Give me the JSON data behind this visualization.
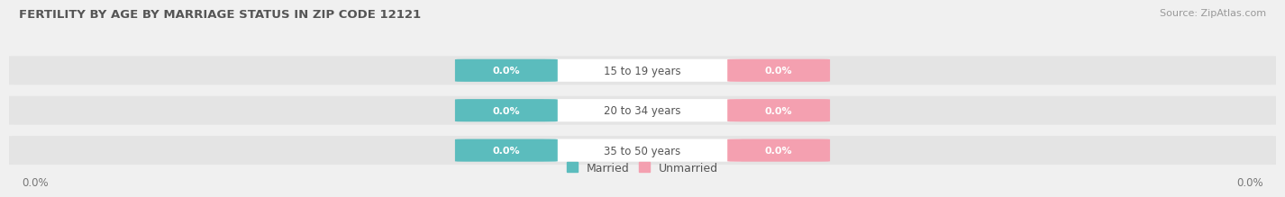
{
  "title": "FERTILITY BY AGE BY MARRIAGE STATUS IN ZIP CODE 12121",
  "source_text": "Source: ZipAtlas.com",
  "age_groups": [
    "15 to 19 years",
    "20 to 34 years",
    "35 to 50 years"
  ],
  "married_values": [
    0.0,
    0.0,
    0.0
  ],
  "unmarried_values": [
    0.0,
    0.0,
    0.0
  ],
  "married_color": "#5bbcbd",
  "unmarried_color": "#f4a0b0",
  "bar_bg_color": "#e4e4e4",
  "label_bg_color": "#ffffff",
  "title_fontsize": 9.5,
  "source_fontsize": 8.0,
  "label_fontsize": 8.5,
  "value_fontsize": 8.0,
  "legend_fontsize": 9,
  "tick_fontsize": 8.5,
  "axis_label_left": "0.0%",
  "axis_label_right": "0.0%",
  "background_color": "#f0f0f0",
  "title_color": "#555555",
  "source_color": "#999999",
  "label_color": "#555555",
  "value_color": "#ffffff",
  "tick_color": "#777777"
}
